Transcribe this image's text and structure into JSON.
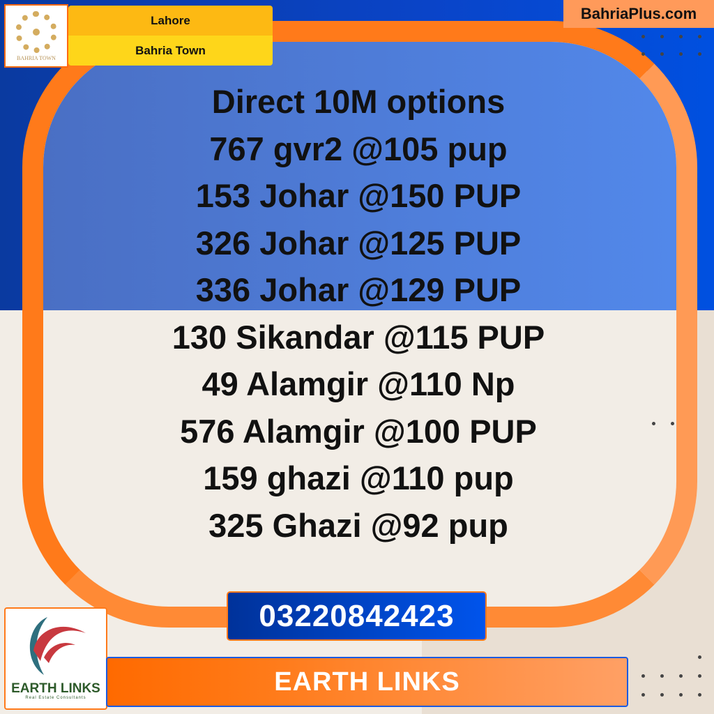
{
  "header": {
    "site": "BahriaPlus.com",
    "city": "Lahore",
    "society": "Bahria Town",
    "logo_text": "BAHRIA TOWN"
  },
  "listing": {
    "lines": [
      "Direct 10M options",
      "767 gvr2 @105 pup",
      "153 Johar @150 PUP",
      "326 Johar @125 PUP",
      "336 Johar @129 PUP",
      "130 Sikandar @115 PUP",
      "49 Alamgir @110 Np",
      "576 Alamgir @100 PUP",
      "159 ghazi @110 pup",
      "325 Ghazi @92 pup"
    ]
  },
  "contact": {
    "phone": "03220842423",
    "agency": "EARTH LINKS",
    "logo_title": "EARTH LINKS",
    "logo_subtitle": "Real Estate Consultants"
  },
  "colors": {
    "orange": "#ff7a1a",
    "blue": "#0a44c8",
    "cream": "#f2ede6",
    "gold": "#d4ac5f"
  }
}
